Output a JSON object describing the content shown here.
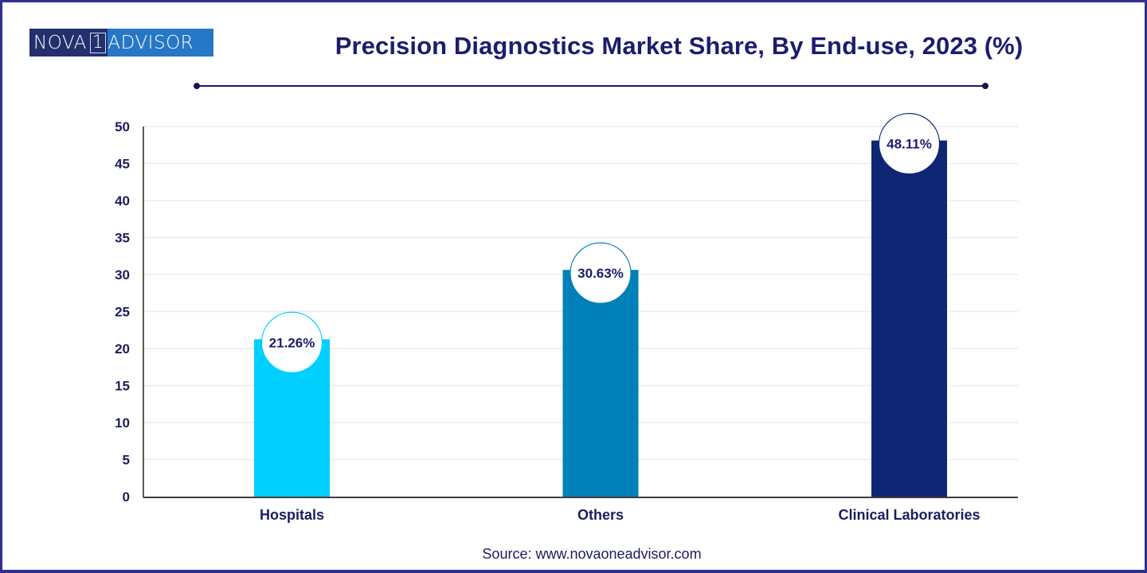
{
  "brand": {
    "logo_left": "NOVA",
    "logo_mark": "1",
    "logo_right": "ADVISOR"
  },
  "colors": {
    "frame": "#2f2f8f",
    "title": "#1c1c6e",
    "axis_text": "#1c1c5e",
    "grid": "#ececec"
  },
  "source": "Source: www.novaoneadvisor.com",
  "chart_data": {
    "type": "bar",
    "title": "Precision Diagnostics Market Share, By End-use, 2023 (%)",
    "xlabel": "",
    "ylabel": "",
    "categories": [
      "Hospitals",
      "Others",
      "Clinical Laboratories"
    ],
    "values": [
      21.26,
      30.63,
      48.11
    ],
    "data_labels": [
      "21.26%",
      "30.63%",
      "48.11%"
    ],
    "bar_colors": [
      "#00cfff",
      "#0080b8",
      "#0e2673"
    ],
    "ylim": [
      0,
      50
    ],
    "yticks": [
      0,
      5,
      10,
      15,
      20,
      25,
      30,
      35,
      40,
      45,
      50
    ],
    "grid": true,
    "legend": "none"
  }
}
